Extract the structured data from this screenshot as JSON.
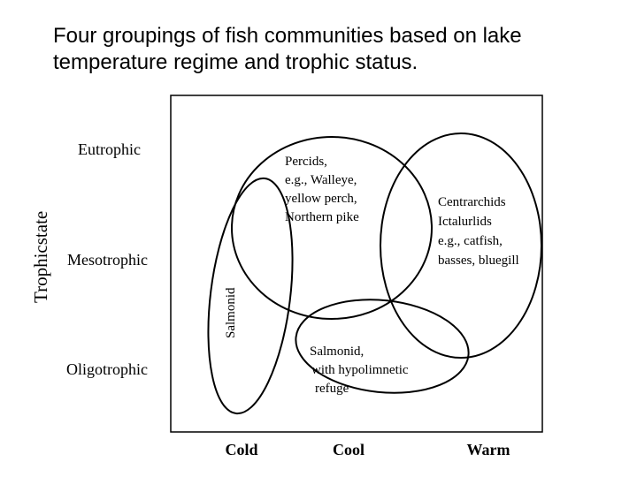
{
  "title": {
    "line1": "Four groupings of fish communities based on lake",
    "line2": "temperature regime and trophic status."
  },
  "diagram": {
    "y_axis_label": "Trophicstate",
    "trophic_levels": [
      "Eutrophic",
      "Mesotrophic",
      "Oligotrophic"
    ],
    "temperature_regimes": [
      "Cold",
      "Cool",
      "Warm"
    ],
    "groups": {
      "percids": [
        "Percids,",
        "e.g., Walleye,",
        "yellow perch,",
        "Northern pike"
      ],
      "centrarchids": [
        "Centrarchids",
        "Ictalurlids",
        "e.g., catfish,",
        "basses, bluegill"
      ],
      "salmonid_vertical": "Salmonid",
      "salmonid_refuge": [
        "Salmonid,",
        "with hypolimnetic",
        "refuge"
      ]
    }
  }
}
